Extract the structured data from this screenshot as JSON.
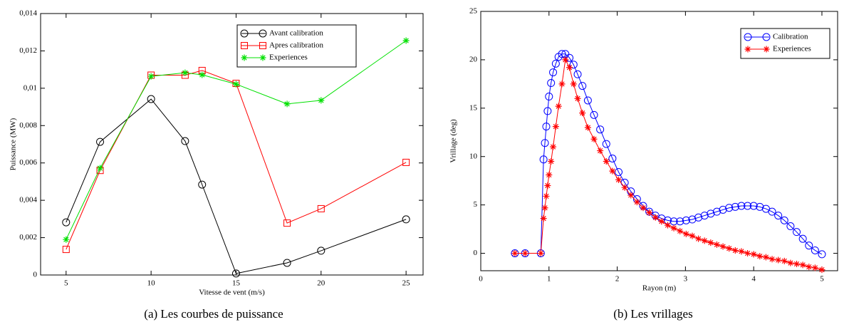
{
  "chart_data": [
    {
      "type": "line",
      "caption": "(a) Les courbes de puissance",
      "xlabel": "Vitesse de vent (m/s)",
      "ylabel": "Puissance (MW)",
      "x": [
        5,
        7,
        10,
        12,
        13,
        15,
        18,
        20,
        25
      ],
      "xlim": [
        3.5,
        26
      ],
      "xticks": [
        5,
        10,
        15,
        20,
        25
      ],
      "ylim": [
        0,
        0.014
      ],
      "yticks": [
        0,
        {
          "value": 0.002,
          "label": "0,002"
        },
        {
          "value": 0.004,
          "label": "0,004"
        },
        {
          "value": 0.006,
          "label": "0,006"
        },
        {
          "value": 0.008,
          "label": "0,008"
        },
        {
          "value": 0.01,
          "label": "0,01"
        },
        {
          "value": 0.012,
          "label": "0,012"
        },
        {
          "value": 0.014,
          "label": "0,014"
        }
      ],
      "grid": false,
      "legend": "upper right",
      "series": [
        {
          "name": "Avant calibration",
          "color": "#000000",
          "marker": "circle",
          "values": [
            0.00282,
            0.00713,
            0.00942,
            0.00717,
            0.00484,
            8e-05,
            0.00065,
            0.0013,
            0.00298
          ]
        },
        {
          "name": "Apres calibration",
          "color": "#ff0000",
          "marker": "square",
          "values": [
            0.00137,
            0.0056,
            0.0107,
            0.0107,
            0.01095,
            0.01026,
            0.00278,
            0.00355,
            0.00603
          ]
        },
        {
          "name": "Experiences",
          "color": "#00e000",
          "marker": "star",
          "values": [
            0.0019,
            0.00572,
            0.01064,
            0.01083,
            0.01072,
            0.01022,
            0.00916,
            0.00935,
            0.01255
          ]
        }
      ]
    },
    {
      "type": "line",
      "caption": "(b) Les vrillages",
      "xlabel": "Rayon (m)",
      "ylabel": "Vrillage (deg)",
      "x": [
        0.5,
        0.65,
        0.88,
        0.92,
        0.94,
        0.96,
        0.98,
        1.0,
        1.03,
        1.06,
        1.1,
        1.14,
        1.19,
        1.24,
        1.3,
        1.36,
        1.42,
        1.49,
        1.57,
        1.66,
        1.75,
        1.84,
        1.93,
        2.02,
        2.11,
        2.2,
        2.29,
        2.38,
        2.47,
        2.56,
        2.65,
        2.74,
        2.83,
        2.92,
        3.01,
        3.1,
        3.19,
        3.28,
        3.37,
        3.46,
        3.55,
        3.64,
        3.73,
        3.82,
        3.91,
        4.0,
        4.09,
        4.18,
        4.27,
        4.36,
        4.45,
        4.54,
        4.63,
        4.72,
        4.81,
        4.9,
        5.0
      ],
      "xlim": [
        0,
        5.23
      ],
      "xticks": [
        0,
        1,
        2,
        3,
        4,
        5
      ],
      "ylim": [
        -1.8,
        25
      ],
      "yticks": [
        0,
        5,
        10,
        15,
        20,
        25
      ],
      "grid": false,
      "legend": "upper right",
      "series": [
        {
          "name": "Calibration",
          "color": "#0000ff",
          "marker": "circle",
          "values": [
            0,
            0,
            0,
            9.7,
            11.4,
            13.1,
            14.7,
            16.2,
            17.6,
            18.7,
            19.6,
            20.3,
            20.6,
            20.6,
            20.2,
            19.5,
            18.5,
            17.3,
            15.8,
            14.3,
            12.8,
            11.3,
            9.8,
            8.4,
            7.3,
            6.4,
            5.6,
            4.9,
            4.3,
            3.9,
            3.6,
            3.4,
            3.3,
            3.3,
            3.4,
            3.5,
            3.7,
            3.9,
            4.1,
            4.3,
            4.5,
            4.7,
            4.8,
            4.9,
            4.9,
            4.9,
            4.8,
            4.6,
            4.3,
            3.9,
            3.4,
            2.8,
            2.2,
            1.5,
            0.8,
            0.3,
            -0.1
          ]
        },
        {
          "name": "Experiences",
          "color": "#ff0000",
          "marker": "star",
          "values": [
            0,
            0,
            0,
            3.6,
            4.7,
            5.9,
            7.0,
            8.1,
            9.5,
            11.0,
            13.1,
            15.2,
            17.5,
            20.0,
            19.2,
            17.5,
            16.0,
            14.5,
            13.0,
            11.8,
            10.6,
            9.5,
            8.5,
            7.6,
            6.8,
            6.0,
            5.3,
            4.7,
            4.2,
            3.7,
            3.3,
            2.9,
            2.6,
            2.3,
            2.0,
            1.8,
            1.5,
            1.3,
            1.1,
            0.9,
            0.7,
            0.5,
            0.3,
            0.2,
            0.0,
            -0.1,
            -0.3,
            -0.4,
            -0.6,
            -0.7,
            -0.8,
            -1.0,
            -1.1,
            -1.2,
            -1.4,
            -1.5,
            -1.7
          ]
        }
      ]
    }
  ]
}
